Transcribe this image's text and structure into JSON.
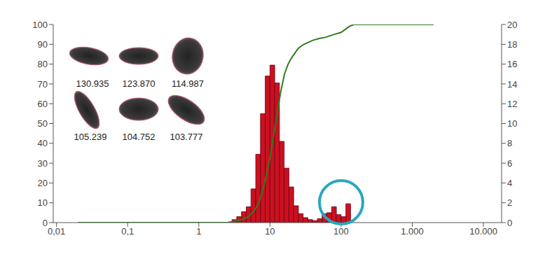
{
  "chart_data": {
    "type": "histogram",
    "log": "x",
    "grid": false,
    "xlim": [
      0.009,
      18000
    ],
    "xticks": [
      {
        "value": 0.01,
        "label": "0,01"
      },
      {
        "value": 0.1,
        "label": "0,1"
      },
      1,
      10,
      100,
      {
        "value": 1000,
        "label": "1.000"
      },
      {
        "value": 10000,
        "label": "10.000"
      }
    ],
    "ylim": [
      0,
      100
    ],
    "yticks": [
      0,
      10,
      20,
      30,
      40,
      50,
      60,
      70,
      80,
      90,
      100
    ],
    "y2lim": [
      0,
      20
    ],
    "y2ticks": [
      0,
      2,
      4,
      6,
      8,
      10,
      12,
      14,
      16,
      18,
      20
    ],
    "bins": [
      2.93,
      3.41,
      3.98,
      4.64,
      5.41,
      6.31,
      7.36,
      8.58,
      10.0,
      11.66,
      13.59,
      15.85,
      18.48,
      21.54,
      25.12,
      29.29,
      34.15,
      39.81,
      46.42,
      54.12,
      63.1,
      73.56,
      85.77,
      100,
      116.6,
      135.9
    ],
    "counts": [
      0.3,
      0.6,
      1.1,
      1.6,
      3.4,
      6.9,
      11.0,
      14.8,
      15.9,
      14.1,
      8.2,
      5.5,
      3.6,
      1.7,
      0.9,
      0.5,
      0.3,
      0.2,
      0.4,
      0.9,
      1.0,
      1.6,
      0.8,
      0.6,
      1.9
    ],
    "axis": "y2",
    "color": "#cc1020",
    "cumulative": {
      "type": "line",
      "color": "#2e7d1e",
      "x": [
        0.02,
        2.5,
        3,
        4,
        5,
        6,
        7,
        8,
        9,
        10,
        12,
        14,
        16,
        18,
        20,
        25,
        30,
        40,
        50,
        60,
        80,
        100,
        130,
        150,
        2000
      ],
      "values": [
        0,
        0,
        0.5,
        1.5,
        3,
        6,
        10,
        17,
        25,
        33,
        50,
        65,
        75,
        80,
        83,
        88,
        90,
        92,
        93,
        93.5,
        95,
        96,
        99,
        100,
        100
      ]
    },
    "annotations": [
      "130.935",
      "123.870",
      "114.987",
      "105.239",
      "104.752",
      "103.777"
    ]
  }
}
